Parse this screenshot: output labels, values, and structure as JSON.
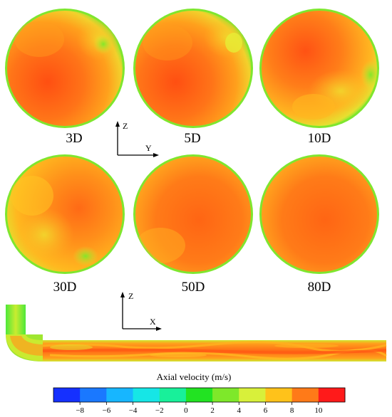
{
  "sections": [
    {
      "label": "3D"
    },
    {
      "label": "5D"
    },
    {
      "label": "10D"
    },
    {
      "label": "30D"
    },
    {
      "label": "50D"
    },
    {
      "label": "80D"
    }
  ],
  "cross_section_axes": {
    "vertical": "Z",
    "horizontal": "Y"
  },
  "longitudinal_axes": {
    "vertical": "Z",
    "horizontal": "X"
  },
  "colorbar": {
    "title": "Axial velocity (m/s)",
    "ticks": [
      "−8",
      "−6",
      "−4",
      "−2",
      "0",
      "2",
      "4",
      "6",
      "8",
      "10"
    ],
    "colors": [
      "#1530ff",
      "#1a78ff",
      "#17b6ff",
      "#16e6e6",
      "#18f09a",
      "#22e322",
      "#7ee82a",
      "#d8f03a",
      "#ffc21a",
      "#ff7a18",
      "#ff1a1a"
    ]
  }
}
